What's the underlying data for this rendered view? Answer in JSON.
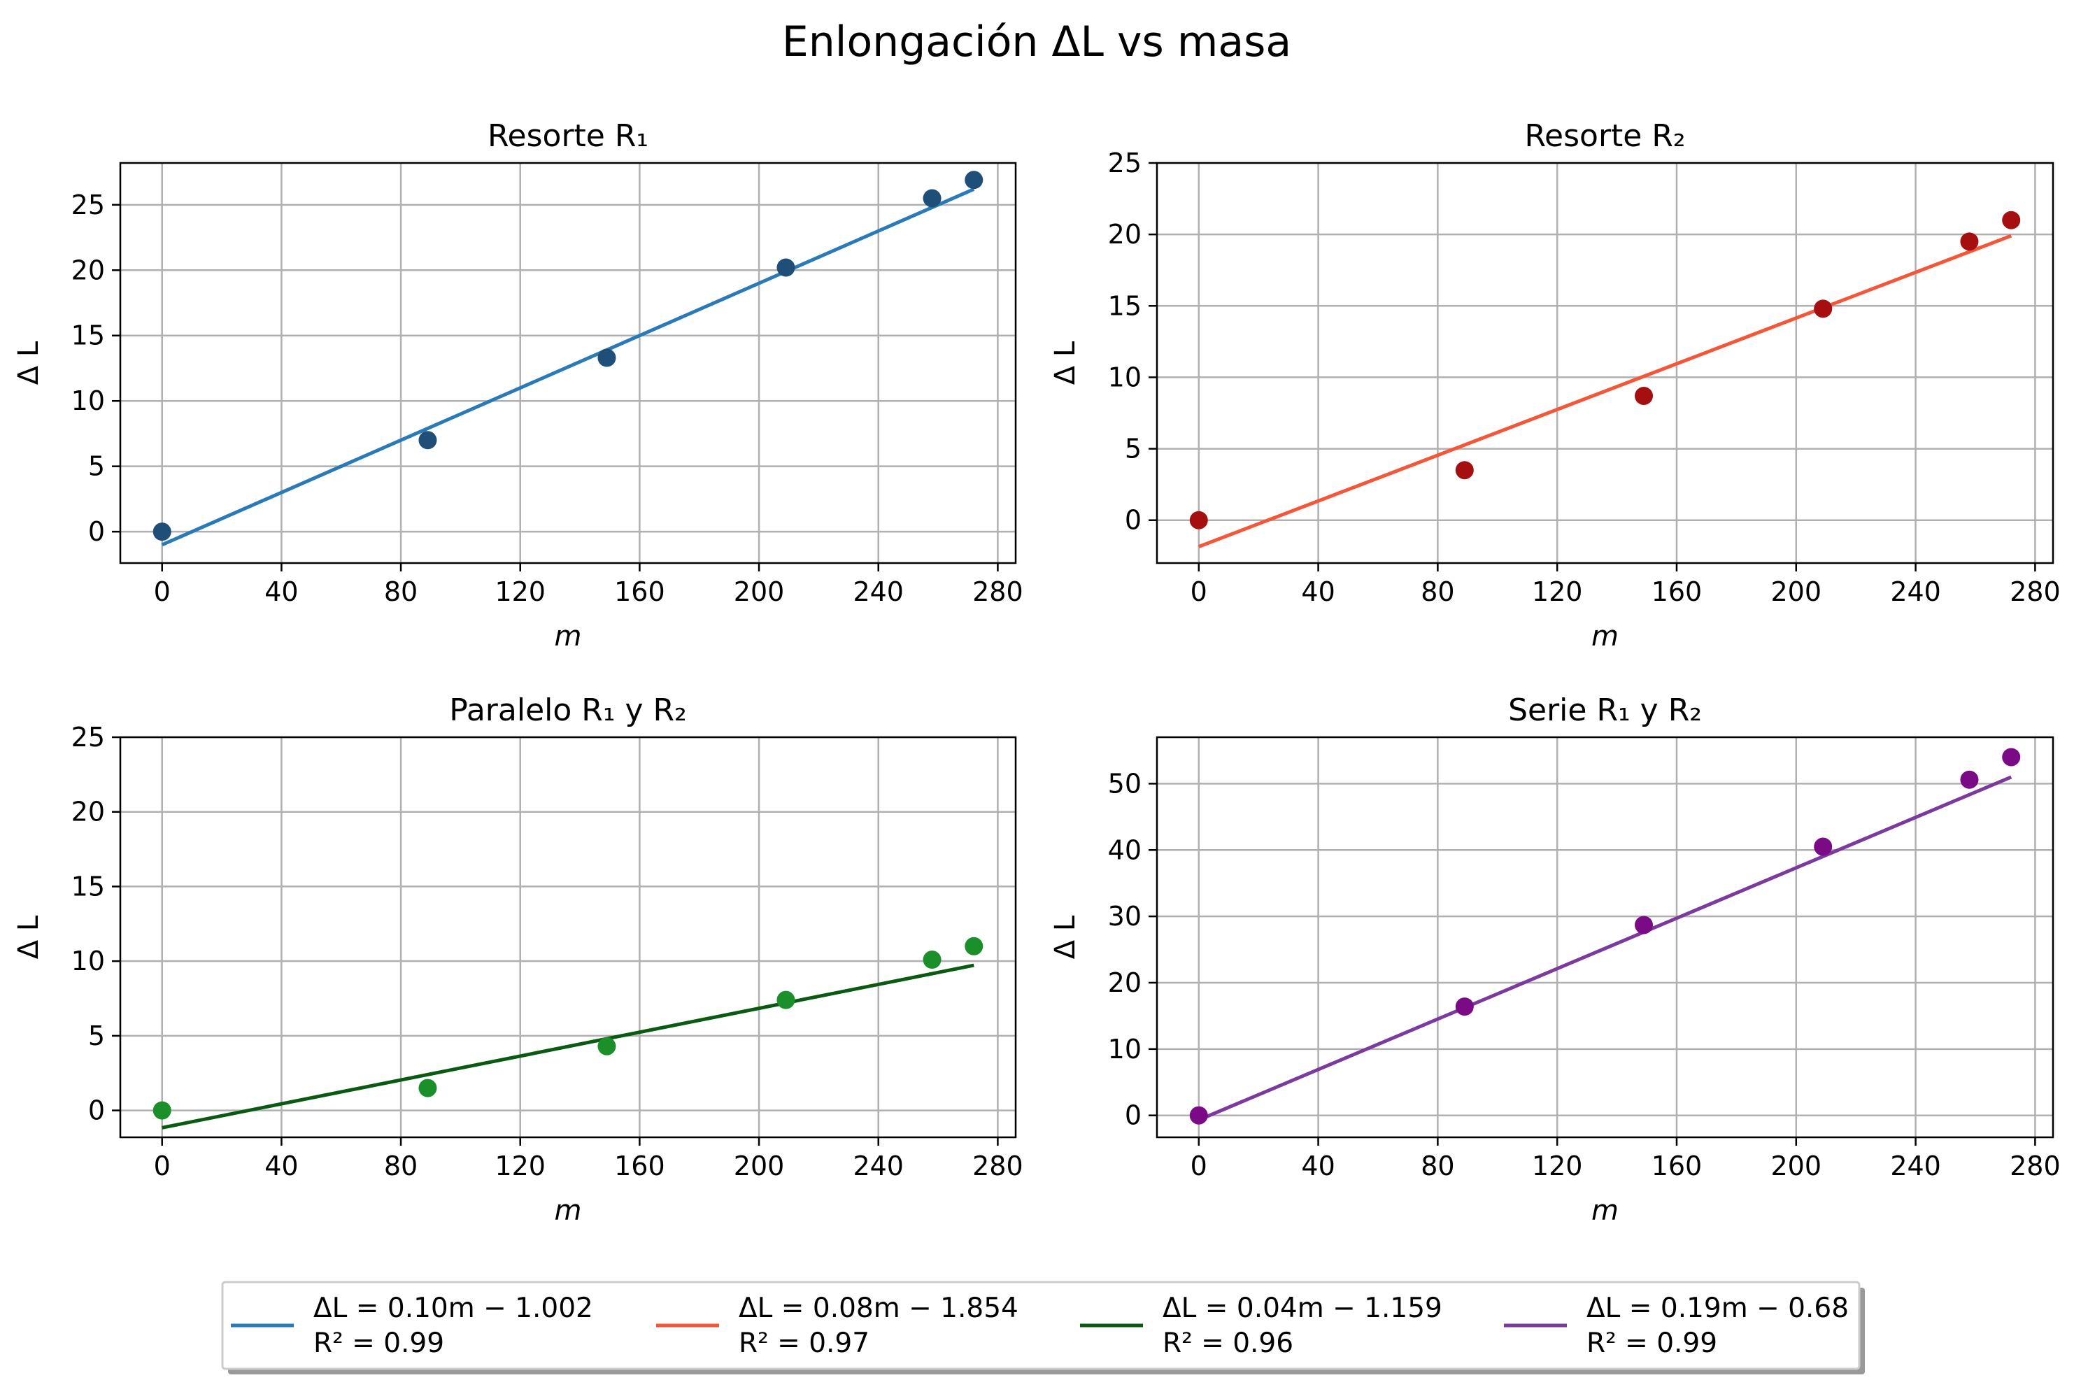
{
  "figure_title": "Enlongación ΔL vs masa",
  "chart_data": [
    {
      "type": "scatter",
      "title": "Resorte R₁",
      "xlabel": "m",
      "ylabel": "Δ L",
      "xlim": [
        -14,
        286
      ],
      "ylim": [
        -2.4,
        28.2
      ],
      "xticks": [
        0,
        40,
        80,
        120,
        160,
        200,
        240,
        280
      ],
      "yticks": [
        0,
        5,
        10,
        15,
        20,
        25
      ],
      "grid": true,
      "x": [
        0,
        89,
        149,
        209,
        258,
        272
      ],
      "y": [
        0.0,
        7.0,
        13.3,
        20.2,
        25.5,
        26.9
      ],
      "point_color": "#1f4e79",
      "fit": {
        "slope": 0.1,
        "intercept": -1.002,
        "x_range": [
          0,
          272
        ],
        "color": "#2a7ab8",
        "equation": "ΔL = 0.10m − 1.002",
        "r2": "R² = 0.99"
      }
    },
    {
      "type": "scatter",
      "title": "Resorte R₂",
      "xlabel": "m",
      "ylabel": "Δ L",
      "xlim": [
        -14,
        286
      ],
      "ylim": [
        -3.0,
        25.0
      ],
      "xticks": [
        0,
        40,
        80,
        120,
        160,
        200,
        240,
        280
      ],
      "yticks": [
        0,
        5,
        10,
        15,
        20,
        25
      ],
      "grid": true,
      "x": [
        0,
        89,
        149,
        209,
        258,
        272
      ],
      "y": [
        0.0,
        3.5,
        8.7,
        14.8,
        19.5,
        21.0
      ],
      "point_color": "#a50f0f",
      "fit": {
        "slope": 0.08,
        "intercept": -1.854,
        "x_range": [
          0,
          272
        ],
        "color": "#f4563a",
        "equation": "ΔL = 0.08m − 1.854",
        "r2": "R² = 0.97"
      }
    },
    {
      "type": "scatter",
      "title": "Paralelo R₁ y R₂",
      "xlabel": "m",
      "ylabel": "Δ L",
      "xlim": [
        -14,
        286
      ],
      "ylim": [
        -1.8,
        25.0
      ],
      "xticks": [
        0,
        40,
        80,
        120,
        160,
        200,
        240,
        280
      ],
      "yticks": [
        0,
        5,
        10,
        15,
        20,
        25
      ],
      "grid": true,
      "x": [
        0,
        89,
        149,
        209,
        258,
        272
      ],
      "y": [
        0.0,
        1.5,
        4.3,
        7.4,
        10.1,
        11.0
      ],
      "point_color": "#1a8f2a",
      "fit": {
        "slope": 0.04,
        "intercept": -1.159,
        "x_range": [
          0,
          272
        ],
        "color": "#0b5a12",
        "equation": "ΔL = 0.04m − 1.159",
        "r2": "R² = 0.96"
      }
    },
    {
      "type": "scatter",
      "title": "Serie R₁ y R₂",
      "xlabel": "m",
      "ylabel": "Δ L",
      "xlim": [
        -14,
        286
      ],
      "ylim": [
        -3.3,
        57.0
      ],
      "xticks": [
        0,
        40,
        80,
        120,
        160,
        200,
        240,
        280
      ],
      "yticks": [
        0,
        10,
        20,
        30,
        40,
        50
      ],
      "grid": true,
      "x": [
        0,
        89,
        149,
        209,
        258,
        272
      ],
      "y": [
        0.0,
        16.4,
        28.7,
        40.5,
        50.6,
        54.0
      ],
      "point_color": "#7a0a85",
      "fit": {
        "slope": 0.19,
        "intercept": -0.68,
        "x_range": [
          0,
          272
        ],
        "color": "#7b3a9c",
        "equation": "ΔL = 0.19m − 0.68",
        "r2": "R² = 0.99"
      }
    }
  ],
  "legend": {
    "location": "bottom-center",
    "entries": [
      {
        "equation": "ΔL = 0.10m − 1.002",
        "r2": "R² = 0.99",
        "color": "#2a7ab8"
      },
      {
        "equation": "ΔL = 0.08m − 1.854",
        "r2": "R² = 0.97",
        "color": "#f4563a"
      },
      {
        "equation": "ΔL = 0.04m − 1.159",
        "r2": "R² = 0.96",
        "color": "#0b5a12"
      },
      {
        "equation": "ΔL = 0.19m − 0.68",
        "r2": "R² = 0.99",
        "color": "#7b3a9c"
      }
    ]
  }
}
